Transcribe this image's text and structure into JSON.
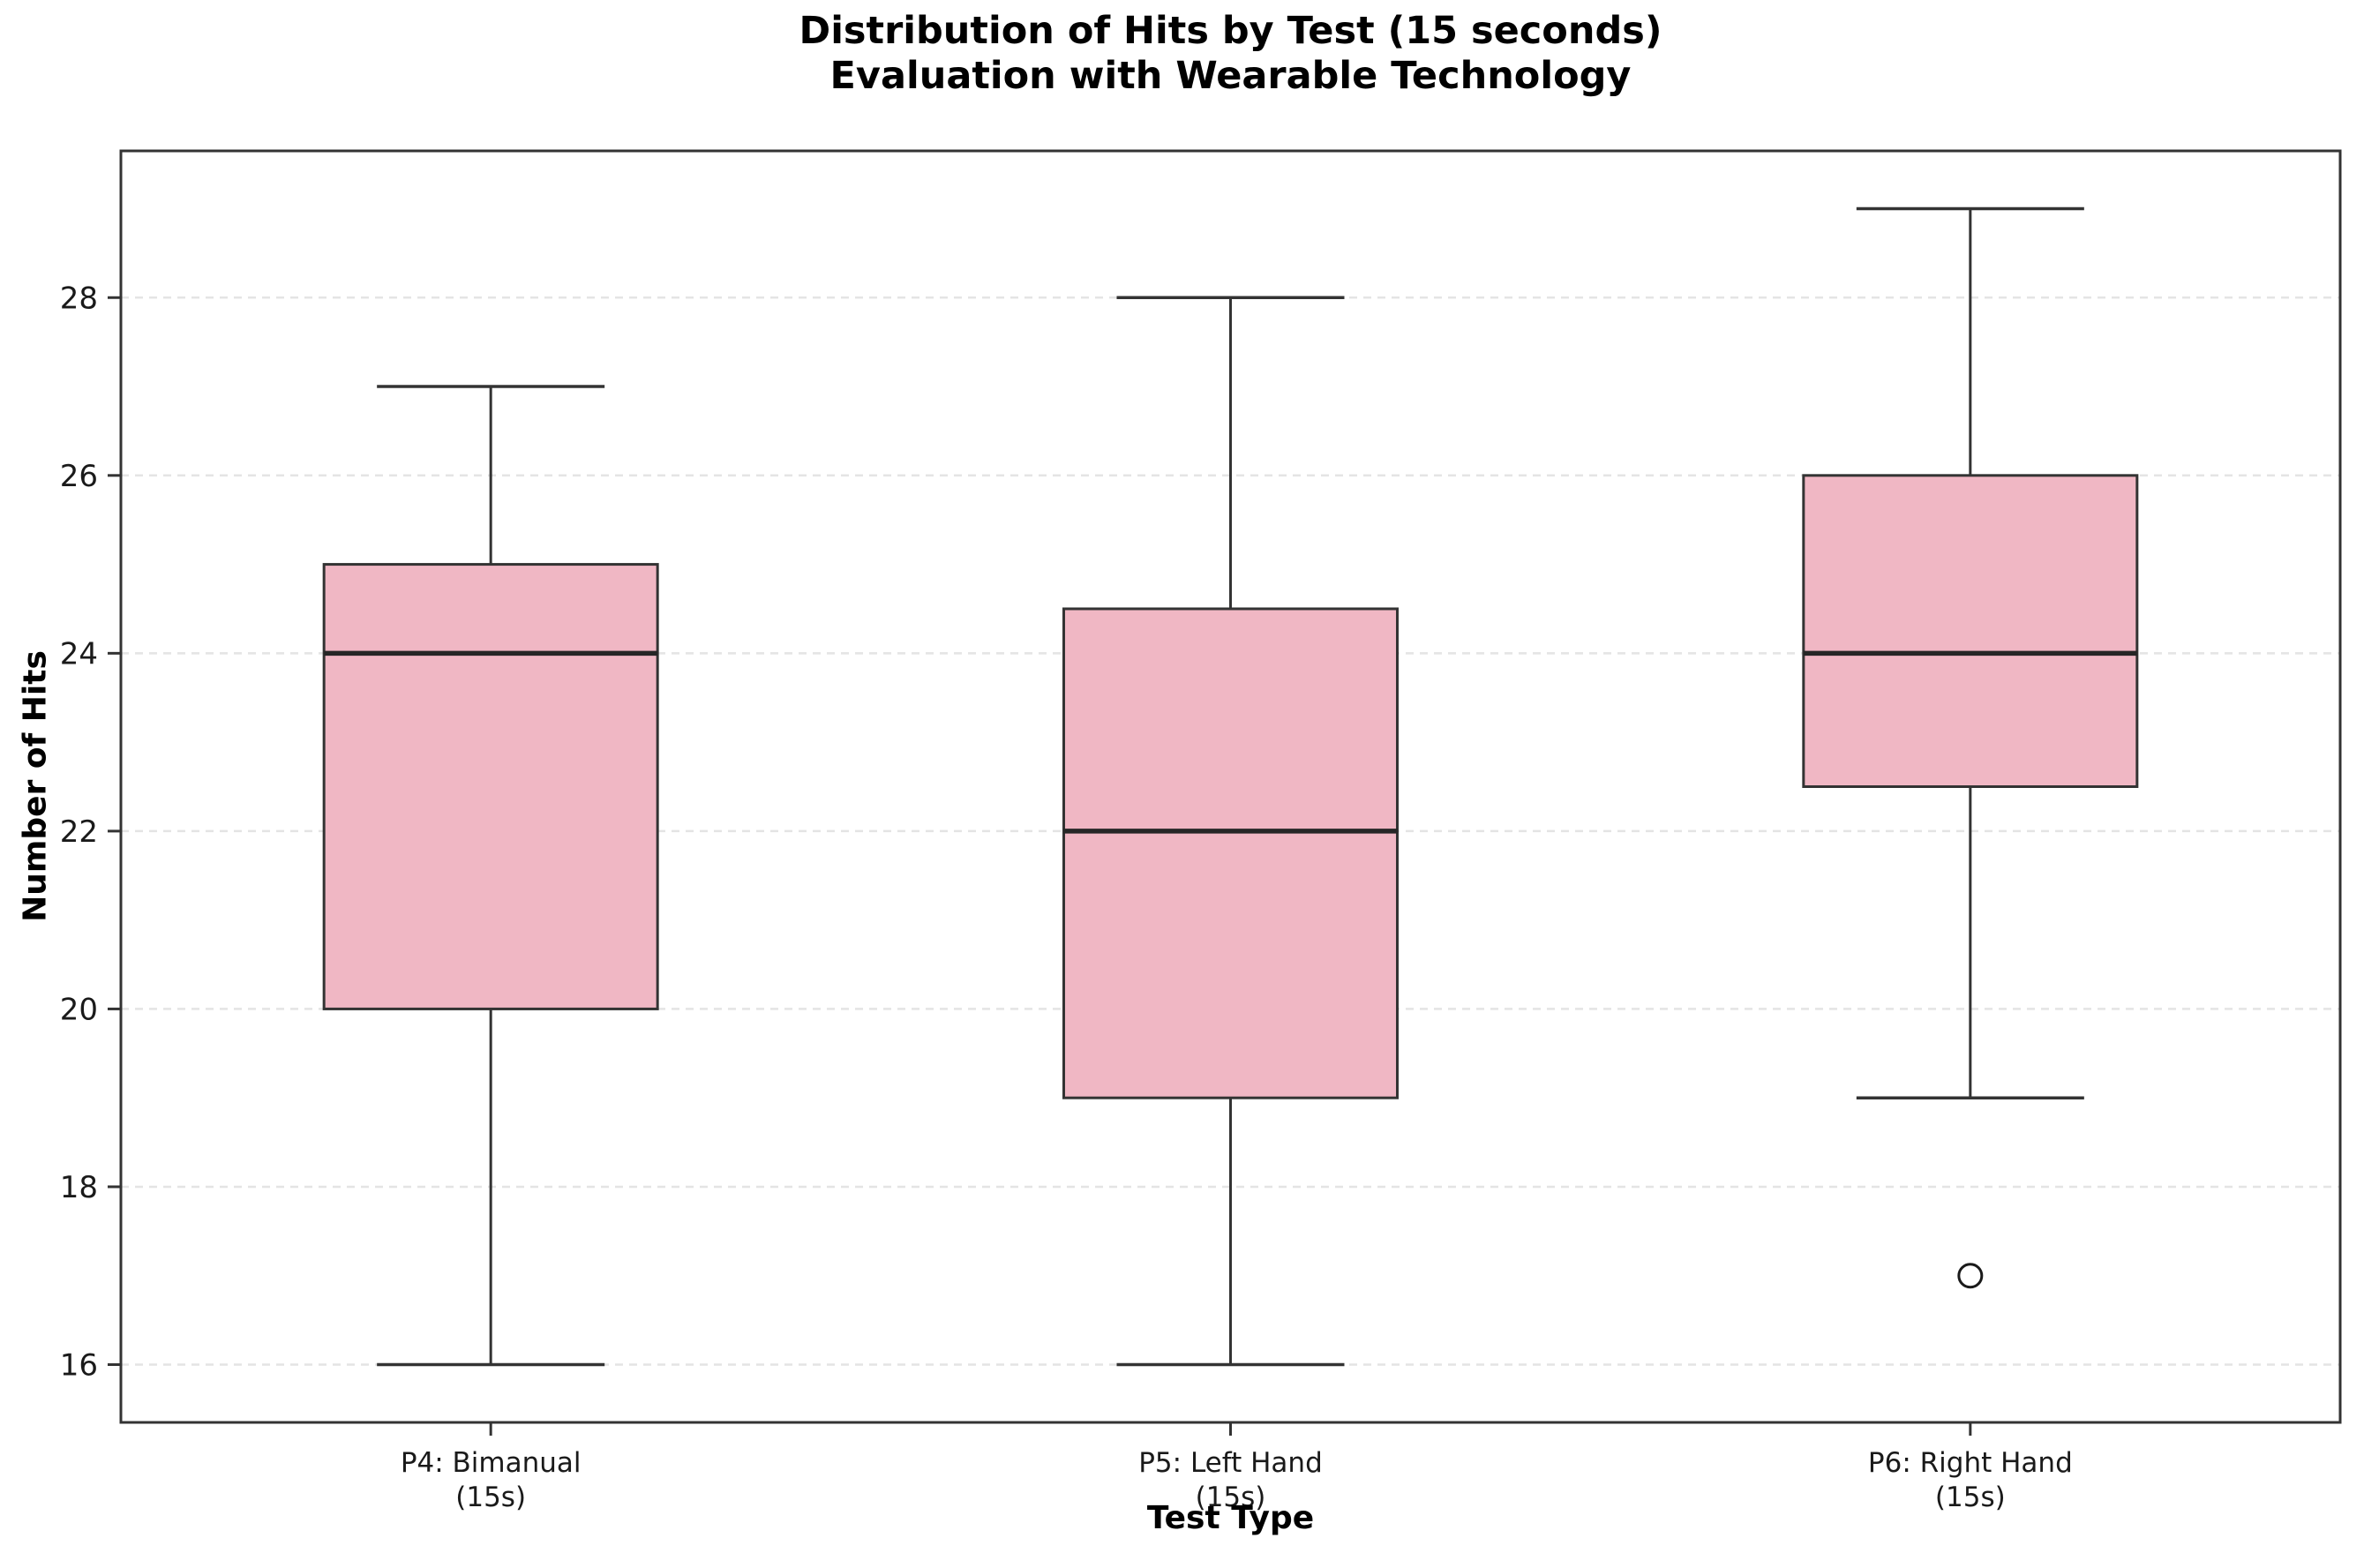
{
  "chart_data": {
    "type": "box",
    "title": "Distribution of Hits by Test (15 seconds)",
    "subtitle": "Evaluation with Wearable Technology",
    "xlabel": "Test Type",
    "ylabel": "Number of Hits",
    "ylim": [
      15.35,
      29.65
    ],
    "yticks": [
      16,
      18,
      20,
      22,
      24,
      26,
      28
    ],
    "grid": "horizontal-dashed",
    "legend": "none",
    "categories": [
      [
        "P4: Bimanual",
        "(15s)"
      ],
      [
        "P5: Left Hand",
        "(15s)"
      ],
      [
        "P6: Right Hand",
        "(15s)"
      ]
    ],
    "boxes": [
      {
        "label": "P4: Bimanual (15s)",
        "whisker_low": 16,
        "q1": 20,
        "median": 24,
        "q3": 25,
        "whisker_high": 27,
        "outliers": []
      },
      {
        "label": "P5: Left Hand (15s)",
        "whisker_low": 16,
        "q1": 19,
        "median": 22,
        "q3": 24.5,
        "whisker_high": 28,
        "outliers": []
      },
      {
        "label": "P6: Right Hand (15s)",
        "whisker_low": 19,
        "q1": 22.5,
        "median": 24,
        "q3": 26,
        "whisker_high": 29,
        "outliers": [
          17
        ]
      }
    ],
    "colors": {
      "box_fill": "#f0b7c4",
      "box_edge": "#333333",
      "median": "#262626",
      "whisker": "#333333",
      "outlier_edge": "#1a1a1a",
      "grid": "#e4e4e4",
      "axis": "#333333",
      "text": "#1a1a1a",
      "background": "#ffffff"
    }
  }
}
